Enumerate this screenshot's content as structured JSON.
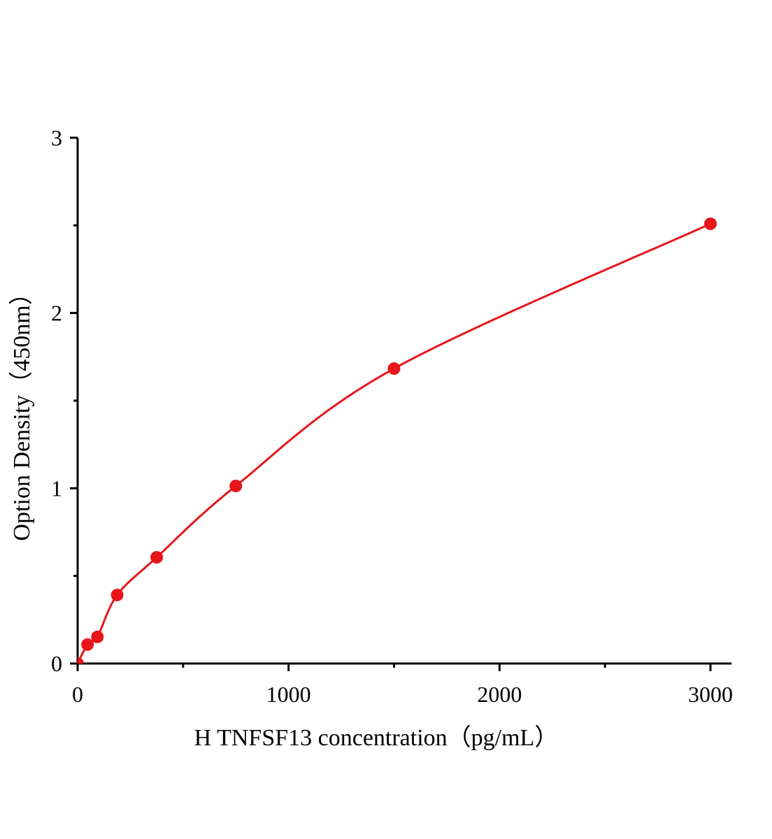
{
  "chart_data": {
    "type": "scatter",
    "title": "",
    "xlabel": "H  TNFSF13 concentration（pg/mL）",
    "ylabel": "Option Density（450nm）",
    "xlim": [
      0,
      3100
    ],
    "ylim": [
      0,
      3
    ],
    "xticks": [
      0,
      1000,
      2000,
      3000
    ],
    "xtick_labels": [
      "0",
      "1000",
      "2000",
      "3000"
    ],
    "x_minor_ticks": [
      500,
      1500,
      2500
    ],
    "yticks": [
      0,
      1,
      2,
      3
    ],
    "ytick_labels": [
      "0",
      "1",
      "2",
      "3"
    ],
    "y_minor_ticks": [
      0.5,
      1.5,
      2.5
    ],
    "grid": false,
    "legend": "none",
    "series": [
      {
        "x": [
          0,
          46.875,
          93.75,
          187.5,
          375,
          750,
          1500,
          3000
        ],
        "y": [
          0,
          0.108,
          0.152,
          0.391,
          0.606,
          1.013,
          1.683,
          2.509
        ],
        "marker": "circle",
        "fitted_curve": true,
        "color": "#e8161b"
      }
    ]
  }
}
